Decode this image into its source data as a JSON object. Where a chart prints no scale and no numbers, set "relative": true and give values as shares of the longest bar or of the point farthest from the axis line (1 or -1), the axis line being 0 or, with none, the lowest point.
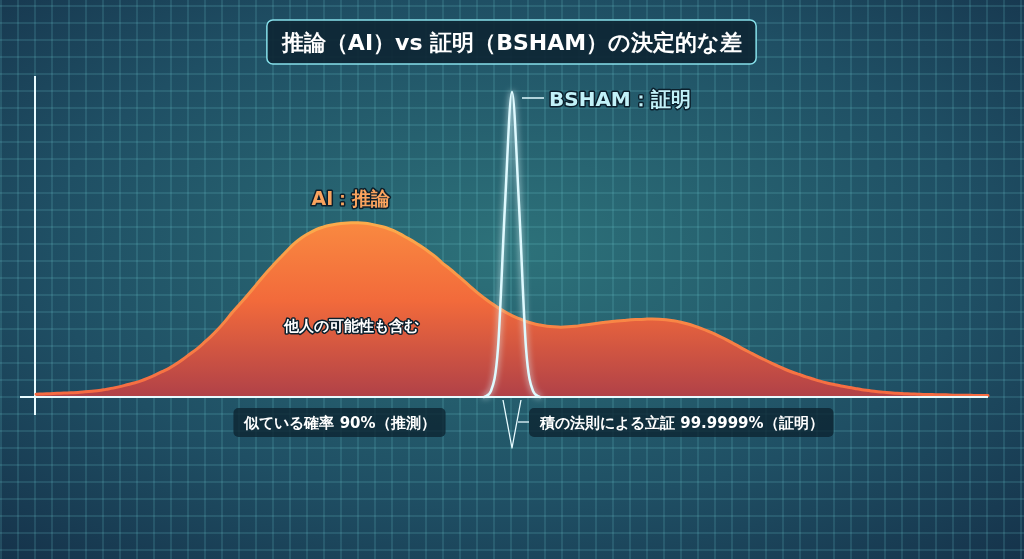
{
  "chart_data": {
    "type": "area",
    "title": "推論（AI）vs 証明（BSHAM）の決定的な差",
    "relative": true,
    "grid": true,
    "categories": [
      null,
      null,
      null,
      null,
      null,
      null,
      null,
      null,
      null,
      null,
      null,
      null,
      null,
      null,
      null,
      null,
      null,
      null,
      null,
      null,
      null,
      null,
      null,
      null,
      null,
      null,
      null,
      null,
      null,
      null,
      null,
      null,
      null,
      null,
      null,
      null,
      null,
      null,
      null,
      null,
      null,
      null,
      null,
      null,
      null,
      null,
      null,
      null,
      null,
      null,
      null,
      null,
      null,
      null,
      null,
      null,
      null,
      null,
      null,
      null,
      null,
      null,
      null,
      null,
      null,
      null,
      null,
      null,
      null,
      null,
      null,
      null,
      null,
      null,
      null,
      null,
      null,
      null,
      null,
      null,
      null,
      null,
      null,
      null,
      null,
      null,
      null,
      null,
      null,
      null,
      null,
      null,
      null,
      null,
      null,
      null,
      null,
      null,
      null,
      null,
      null,
      null,
      null,
      null,
      null,
      null,
      null,
      null,
      null,
      null,
      null,
      null,
      null,
      null,
      null,
      null,
      null,
      null,
      null,
      null,
      null,
      null,
      null,
      null,
      null,
      null,
      null,
      null,
      null,
      null,
      null,
      null,
      null,
      null,
      null,
      null,
      null
    ],
    "series": [
      {
        "name": "AI：推論",
        "color": "#f26a3b",
        "values": [
          0.009,
          0.01,
          0.011,
          0.012,
          0.013,
          0.014,
          0.015,
          0.017,
          0.019,
          0.021,
          0.025,
          0.029,
          0.034,
          0.04,
          0.046,
          0.053,
          0.062,
          0.072,
          0.083,
          0.094,
          0.108,
          0.124,
          0.141,
          0.158,
          0.178,
          0.199,
          0.222,
          0.248,
          0.276,
          0.302,
          0.328,
          0.355,
          0.383,
          0.41,
          0.435,
          0.459,
          0.483,
          0.505,
          0.523,
          0.537,
          0.549,
          0.557,
          0.563,
          0.567,
          0.57,
          0.571,
          0.571,
          0.57,
          0.566,
          0.561,
          0.555,
          0.546,
          0.535,
          0.522,
          0.509,
          0.494,
          0.478,
          0.461,
          0.44,
          0.422,
          0.403,
          0.383,
          0.363,
          0.343,
          0.325,
          0.308,
          0.293,
          0.279,
          0.267,
          0.257,
          0.248,
          0.241,
          0.236,
          0.232,
          0.23,
          0.229,
          0.23,
          0.232,
          0.235,
          0.238,
          0.241,
          0.244,
          0.247,
          0.249,
          0.251,
          0.253,
          0.254,
          0.255,
          0.256,
          0.255,
          0.253,
          0.25,
          0.246,
          0.24,
          0.233,
          0.225,
          0.216,
          0.206,
          0.195,
          0.183,
          0.171,
          0.158,
          0.146,
          0.134,
          0.123,
          0.112,
          0.101,
          0.091,
          0.082,
          0.074,
          0.066,
          0.059,
          0.052,
          0.046,
          0.041,
          0.036,
          0.032,
          0.028,
          0.024,
          0.021,
          0.018,
          0.016,
          0.014,
          0.012,
          0.011,
          0.01,
          0.009,
          0.008,
          0.008,
          0.007,
          0.007,
          0.006,
          0.006,
          0.006,
          0.005,
          0.005,
          0.005
        ]
      },
      {
        "name": "BSHAM：証明",
        "type": "line",
        "color": "#dffaff",
        "values": [
          null,
          null,
          null,
          null,
          null,
          null,
          null,
          null,
          null,
          null,
          null,
          null,
          null,
          null,
          null,
          null,
          null,
          null,
          null,
          null,
          null,
          null,
          null,
          null,
          null,
          null,
          null,
          null,
          null,
          null,
          null,
          null,
          null,
          null,
          null,
          null,
          null,
          null,
          null,
          null,
          null,
          null,
          null,
          null,
          null,
          null,
          null,
          null,
          null,
          null,
          null,
          null,
          null,
          null,
          null,
          null,
          null,
          null,
          null,
          null,
          null,
          null,
          null,
          null,
          0,
          0.02,
          0.16,
          0.63,
          1,
          0.63,
          0.16,
          0.02,
          0,
          null,
          null,
          null,
          null,
          null,
          null,
          null,
          null,
          null,
          null,
          null,
          null,
          null,
          null,
          null,
          null,
          null,
          null,
          null,
          null,
          null,
          null,
          null,
          null,
          null,
          null,
          null,
          null,
          null,
          null,
          null,
          null,
          null,
          null,
          null,
          null,
          null,
          null,
          null,
          null,
          null,
          null,
          null,
          null,
          null,
          null,
          null,
          null,
          null,
          null,
          null,
          null,
          null,
          null,
          null,
          null,
          null,
          null,
          null,
          null,
          null,
          null,
          null,
          null
        ]
      }
    ],
    "annotations": [
      "他人の可能性も含む",
      "似ている確率 90%（推測）",
      "積の法則による立証 99.9999%（証明）"
    ]
  }
}
